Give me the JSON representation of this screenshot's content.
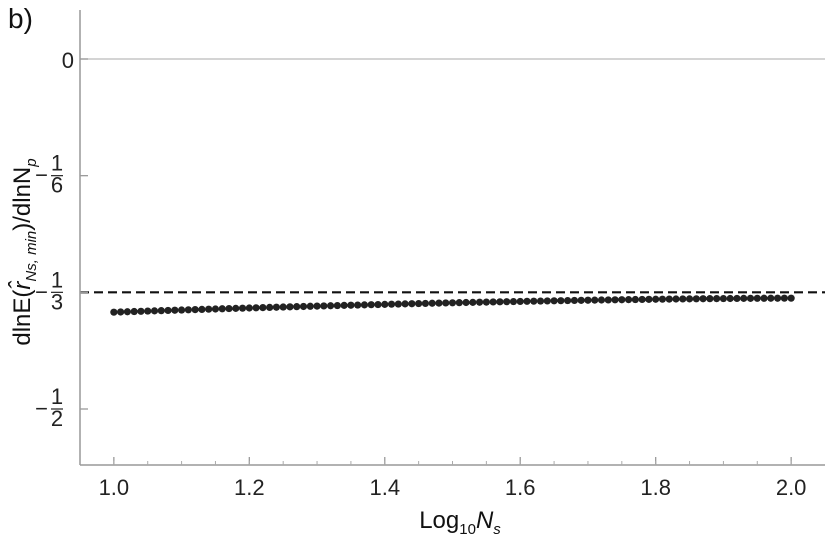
{
  "panel_label": "b)",
  "chart_data": {
    "type": "scatter",
    "title": "",
    "xlabel": "Log10 Ns",
    "xlabel_parts": {
      "base": "Log",
      "sub": "10",
      "var": "N",
      "var_sub": "s"
    },
    "ylabel": "dlnE(r̂Ns, min)/dlnNp",
    "ylabel_parts": {
      "pre": "dlnE(",
      "hat": "r̂",
      "sub": "Ns, min",
      "mid": ")/dlnN",
      "sub2": "p"
    },
    "xlim": [
      0.95,
      2.05
    ],
    "ylim": [
      -0.58,
      0.07
    ],
    "x_ticks": [
      1.0,
      1.2,
      1.4,
      1.6,
      1.8,
      2.0
    ],
    "x_tick_labels": [
      "1.0",
      "1.2",
      "1.4",
      "1.6",
      "1.8",
      "2.0"
    ],
    "y_ticks": [
      {
        "value": 0,
        "label": "0"
      },
      {
        "value": -0.16667,
        "sign": "−",
        "num": "1",
        "den": "6"
      },
      {
        "value": -0.33333,
        "sign": "−",
        "num": "1",
        "den": "3"
      },
      {
        "value": -0.5,
        "sign": "−",
        "num": "1",
        "den": "2"
      }
    ],
    "reference_lines": [
      {
        "y": 0,
        "style": "solid",
        "color": "#bbbbbb"
      },
      {
        "y": -0.33333,
        "style": "dashed",
        "color": "#111111"
      }
    ],
    "series": [
      {
        "color": "#222222",
        "x_start": 1.0,
        "x_end": 2.0,
        "x_step": 0.01,
        "y_at_start": -0.3617,
        "y_at_end": -0.3417,
        "shape": "concave, rising toward -1/3"
      }
    ],
    "grid": false
  }
}
